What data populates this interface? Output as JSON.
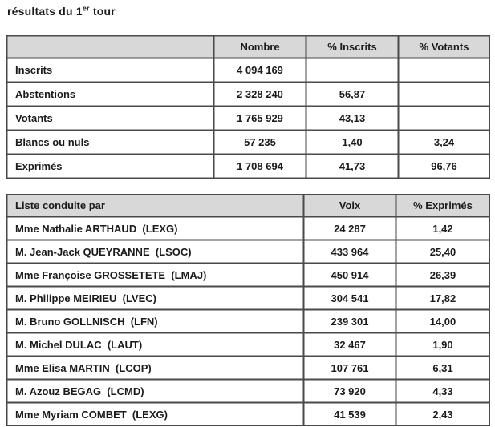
{
  "title": {
    "prefix": "résultats du 1",
    "superscript": "er",
    "suffix": " tour"
  },
  "colors": {
    "header_background": "#d8d8d8",
    "border": "#4a4a4a",
    "text": "#1b1b1b",
    "page_background": "#ffffff"
  },
  "summary_table": {
    "headers": [
      "",
      "Nombre",
      "% Inscrits",
      "% Votants"
    ],
    "rows": [
      {
        "label": "Inscrits",
        "nombre": "4 094 169",
        "pct_inscrits": "",
        "pct_votants": ""
      },
      {
        "label": "Abstentions",
        "nombre": "2 328 240",
        "pct_inscrits": "56,87",
        "pct_votants": ""
      },
      {
        "label": "Votants",
        "nombre": "1 765 929",
        "pct_inscrits": "43,13",
        "pct_votants": ""
      },
      {
        "label": "Blancs ou nuls",
        "nombre": "57 235",
        "pct_inscrits": "1,40",
        "pct_votants": "3,24"
      },
      {
        "label": "Exprimés",
        "nombre": "1 708 694",
        "pct_inscrits": "41,73",
        "pct_votants": "96,76"
      }
    ]
  },
  "results_table": {
    "headers": [
      "Liste conduite par",
      "Voix",
      "% Exprimés"
    ],
    "rows": [
      {
        "liste": "Mme Nathalie ARTHAUD  (LEXG)",
        "voix": "24 287",
        "pct_exprimes": "1,42"
      },
      {
        "liste": "M. Jean-Jack QUEYRANNE  (LSOC)",
        "voix": "433 964",
        "pct_exprimes": "25,40"
      },
      {
        "liste": "Mme Françoise GROSSETETE  (LMAJ)",
        "voix": "450 914",
        "pct_exprimes": "26,39"
      },
      {
        "liste": "M. Philippe MEIRIEU  (LVEC)",
        "voix": "304 541",
        "pct_exprimes": "17,82"
      },
      {
        "liste": "M. Bruno GOLLNISCH  (LFN)",
        "voix": "239 301",
        "pct_exprimes": "14,00"
      },
      {
        "liste": "M. Michel DULAC  (LAUT)",
        "voix": "32 467",
        "pct_exprimes": "1,90"
      },
      {
        "liste": "Mme Elisa MARTIN  (LCOP)",
        "voix": "107 761",
        "pct_exprimes": "6,31"
      },
      {
        "liste": "M. Azouz BEGAG  (LCMD)",
        "voix": "73 920",
        "pct_exprimes": "4,33"
      },
      {
        "liste": "Mme Myriam COMBET  (LEXG)",
        "voix": "41 539",
        "pct_exprimes": "2,43"
      }
    ]
  }
}
